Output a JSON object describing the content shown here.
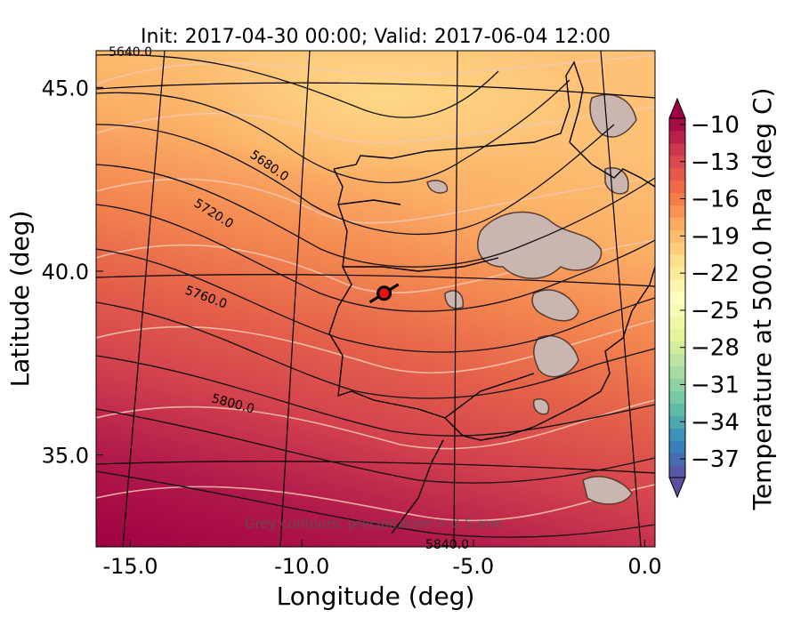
{
  "title": "Init: 2017-04-30 00:00; Valid: 2017-06-04 12:00",
  "axes": {
    "xlabel": "Longitude (deg)",
    "ylabel": "Latitude (deg)",
    "x_ticks": [
      "-15.0",
      "-10.0",
      "-5.0",
      "0.0"
    ],
    "y_ticks": [
      "45.0",
      "40.0",
      "35.0"
    ]
  },
  "colorbar": {
    "label": "Temperature at 500.0 hPa (deg C)",
    "ticks": [
      "−10",
      "−13",
      "−16",
      "−19",
      "−22",
      "−25",
      "−28",
      "−31",
      "−34",
      "−37"
    ]
  },
  "contour_labels": [
    "5640.0",
    "5680.0",
    "5720.0",
    "5760.0",
    "5800.0",
    "5840.0"
  ],
  "annotation": "Grey contours: precipitation > 0.5 mm",
  "chart_data": {
    "type": "heatmap",
    "title": "Init: 2017-04-30 00:00; Valid: 2017-06-04 12:00",
    "xlabel": "Longitude (deg)",
    "ylabel": "Latitude (deg)",
    "xlim": [
      -16.0,
      0.3
    ],
    "ylim": [
      32.5,
      46.0
    ],
    "colorbar_range": [
      -38.5,
      -9.5
    ],
    "colorbar_ticks": [
      -10,
      -13,
      -16,
      -19,
      -22,
      -25,
      -28,
      -31,
      -34,
      -37
    ],
    "height_contours": [
      5640.0,
      5680.0,
      5720.0,
      5760.0,
      5800.0,
      5840.0
    ],
    "marker": {
      "lon": -7.6,
      "lat": 39.4
    }
  }
}
